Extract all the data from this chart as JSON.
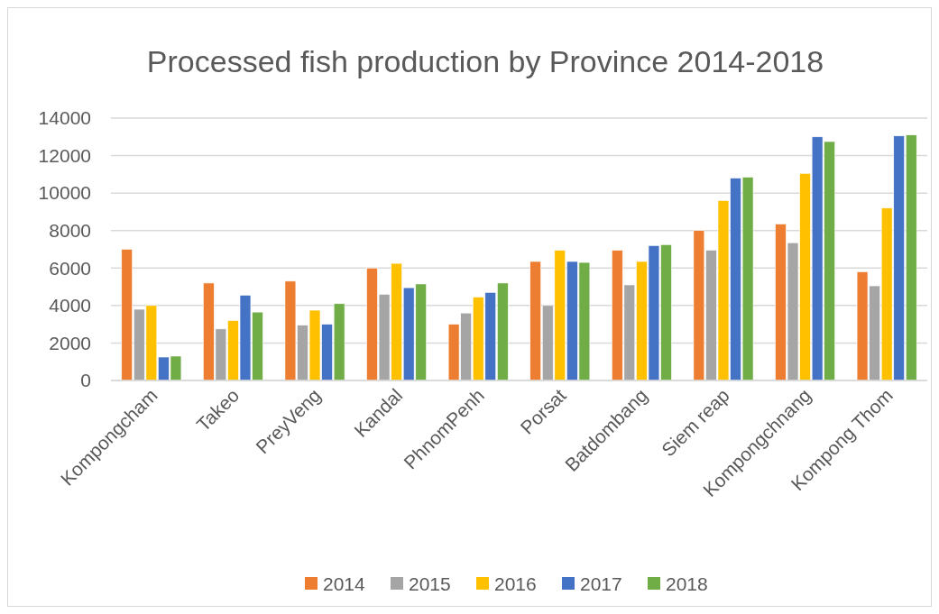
{
  "chart_data": {
    "type": "bar",
    "title": "Processed fish production by Province 2014-2018",
    "categories": [
      "Kompongcham",
      "Takeo",
      "PreyVeng",
      "Kandal",
      "PhnomPenh",
      "Porsat",
      "Batdombang",
      "Siem reap",
      "Kompongchnang",
      "Kompong Thom"
    ],
    "series": [
      {
        "name": "2014",
        "color": "#ed7d31",
        "values": [
          7000,
          5200,
          5300,
          6000,
          3000,
          6350,
          6950,
          8000,
          8350,
          5800
        ]
      },
      {
        "name": "2015",
        "color": "#a5a5a5",
        "values": [
          3800,
          2750,
          2950,
          4600,
          3600,
          4000,
          5100,
          6950,
          7350,
          5050
        ]
      },
      {
        "name": "2016",
        "color": "#ffc000",
        "values": [
          4000,
          3200,
          3750,
          6250,
          4450,
          6950,
          6350,
          9600,
          11050,
          9200
        ]
      },
      {
        "name": "2017",
        "color": "#4472c4",
        "values": [
          1250,
          4550,
          3000,
          4950,
          4700,
          6350,
          7200,
          10800,
          13000,
          13050
        ]
      },
      {
        "name": "2018",
        "color": "#70ad47",
        "values": [
          1300,
          3650,
          4100,
          5150,
          5200,
          6300,
          7250,
          10850,
          12750,
          13100
        ]
      }
    ],
    "ylim": [
      0,
      14000
    ],
    "yticks": [
      0,
      2000,
      4000,
      6000,
      8000,
      10000,
      12000,
      14000
    ],
    "grid": "y",
    "legend": "bottom"
  }
}
